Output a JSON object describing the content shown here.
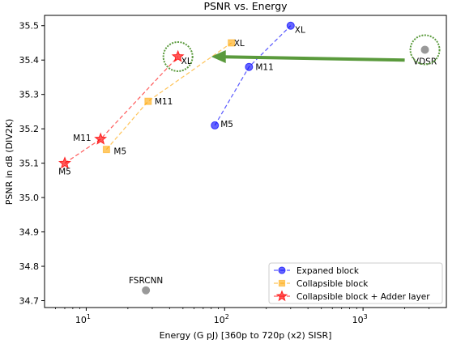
{
  "chart_data": {
    "type": "scatter",
    "title": "PSNR vs. Energy",
    "xlabel": "Energy (G pJ) [360p to 720p (x2) SISR]",
    "ylabel": "PSNR in dB (DIV2K)",
    "xscale": "log",
    "xlim": [
      5,
      4000
    ],
    "ylim": [
      34.68,
      35.53
    ],
    "yticks": [
      "34.7",
      "34.8",
      "34.9",
      "35.0",
      "35.1",
      "35.2",
      "35.3",
      "35.4",
      "35.5"
    ],
    "xticks": [
      {
        "base": "10",
        "exp": "1"
      },
      {
        "base": "10",
        "exp": "2"
      },
      {
        "base": "10",
        "exp": "3"
      }
    ],
    "grid": false,
    "legend_position": "lower-right",
    "series": [
      {
        "name": "Expaned block",
        "color": "#0000ff",
        "marker": "circle",
        "points": [
          {
            "label": "M5",
            "x": 85,
            "y": 35.21
          },
          {
            "label": "M11",
            "x": 150,
            "y": 35.38
          },
          {
            "label": "XL",
            "x": 300,
            "y": 35.5
          }
        ]
      },
      {
        "name": "Collapsible block",
        "color": "#ffa500",
        "marker": "square",
        "points": [
          {
            "label": "M5",
            "x": 14,
            "y": 35.14
          },
          {
            "label": "M11",
            "x": 28,
            "y": 35.28
          },
          {
            "label": "XL",
            "x": 112,
            "y": 35.45
          }
        ]
      },
      {
        "name": "Collapsible block + Adder layer",
        "color": "#ff0000",
        "marker": "star",
        "points": [
          {
            "label": "M5",
            "x": 7,
            "y": 35.1
          },
          {
            "label": "M11",
            "x": 12.7,
            "y": 35.17
          },
          {
            "label": "XL",
            "x": 46,
            "y": 35.41
          }
        ]
      }
    ],
    "references": [
      {
        "label": "FSRCNN",
        "x": 27,
        "y": 34.73,
        "color": "#808080"
      },
      {
        "label": "VDSR",
        "x": 2800,
        "y": 35.43,
        "color": "#808080"
      }
    ],
    "annotations": {
      "arrow": {
        "from": {
          "x": 2000,
          "y": 35.4
        },
        "to": {
          "x": 80,
          "y": 35.41
        },
        "color": "#5a9a3c"
      },
      "circles": [
        {
          "x": 46,
          "y": 35.41
        },
        {
          "x": 2800,
          "y": 35.43
        }
      ]
    }
  }
}
